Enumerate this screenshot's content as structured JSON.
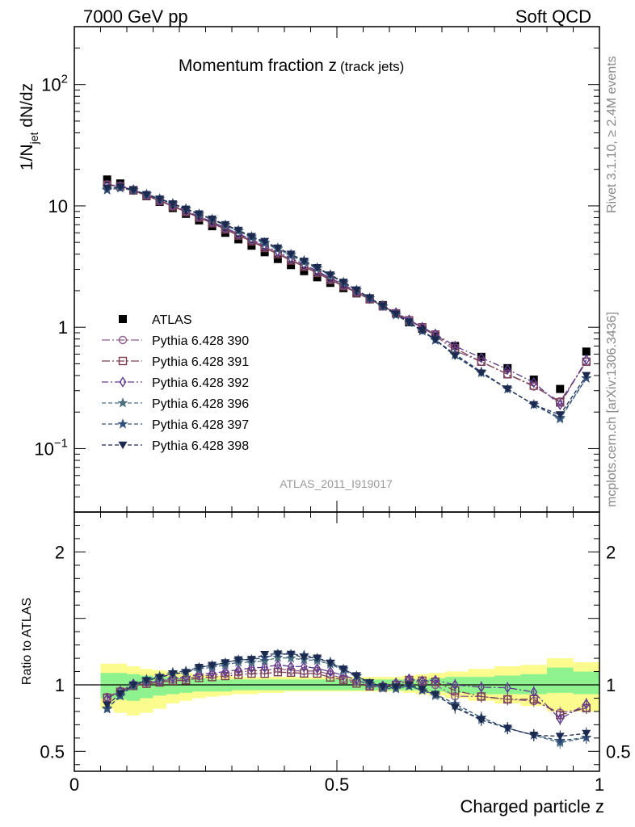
{
  "header": {
    "energy_label": "7000 GeV pp",
    "category_label": "Soft QCD",
    "side_rivet": "Rivet 3.1.10, ≥ 2.4M events",
    "side_mcplots": "mcplots.cern.ch [arXiv:1306.3436]"
  },
  "chart_data": {
    "type": "scatter",
    "title_main": "Momentum fraction z",
    "title_sub": "(track jets)",
    "analysis_label": "ATLAS_2011_I919017",
    "xlabel": "Charged particle z",
    "ylabel_main": "1/N",
    "ylabel_sub": "jet",
    "ylabel_tail": " dN/dz",
    "ratio_ylabel": "Ratio to ATLAS",
    "xlim": [
      0,
      1
    ],
    "ylim_main": [
      0.03,
      300
    ],
    "ylog_main": true,
    "ylim_ratio": [
      0.35,
      2.3
    ],
    "x_ticks": [
      {
        "v": 0,
        "label": "0"
      },
      {
        "v": 0.5,
        "label": "0.5"
      },
      {
        "v": 1,
        "label": "1"
      }
    ],
    "y_ticks_main": [
      {
        "v": 0.1,
        "base": "10",
        "exp": "−1"
      },
      {
        "v": 1,
        "base": "1",
        "exp": ""
      },
      {
        "v": 10,
        "base": "10",
        "exp": ""
      },
      {
        "v": 100,
        "base": "10",
        "exp": "2"
      }
    ],
    "y_ticks_ratio": [
      {
        "v": 0.5,
        "label": "0.5"
      },
      {
        "v": 1,
        "label": "1"
      },
      {
        "v": 2,
        "label": "2"
      }
    ],
    "x": [
      0.0625,
      0.0875,
      0.1125,
      0.1375,
      0.1625,
      0.1875,
      0.2125,
      0.2375,
      0.2625,
      0.2875,
      0.3125,
      0.3375,
      0.3625,
      0.3875,
      0.4125,
      0.4375,
      0.4625,
      0.4875,
      0.5125,
      0.5375,
      0.5625,
      0.5875,
      0.6125,
      0.6375,
      0.6625,
      0.6875,
      0.725,
      0.775,
      0.825,
      0.875,
      0.925,
      0.975
    ],
    "band_outer": [
      [
        0.82,
        1.16
      ],
      [
        0.79,
        1.16
      ],
      [
        0.77,
        1.14
      ],
      [
        0.79,
        1.12
      ],
      [
        0.82,
        1.11
      ],
      [
        0.86,
        1.1
      ],
      [
        0.88,
        1.09
      ],
      [
        0.9,
        1.08
      ],
      [
        0.91,
        1.07
      ],
      [
        0.92,
        1.07
      ],
      [
        0.93,
        1.06
      ],
      [
        0.93,
        1.06
      ],
      [
        0.94,
        1.06
      ],
      [
        0.94,
        1.06
      ],
      [
        0.95,
        1.06
      ],
      [
        0.95,
        1.06
      ],
      [
        0.95,
        1.06
      ],
      [
        0.95,
        1.06
      ],
      [
        0.95,
        1.06
      ],
      [
        0.95,
        1.06
      ],
      [
        0.95,
        1.06
      ],
      [
        0.95,
        1.06
      ],
      [
        0.95,
        1.06
      ],
      [
        0.94,
        1.07
      ],
      [
        0.93,
        1.08
      ],
      [
        0.92,
        1.09
      ],
      [
        0.9,
        1.1
      ],
      [
        0.88,
        1.12
      ],
      [
        0.86,
        1.14
      ],
      [
        0.84,
        1.15
      ],
      [
        0.8,
        1.2
      ],
      [
        0.8,
        1.17
      ]
    ],
    "band_inner": [
      [
        0.9,
        1.09
      ],
      [
        0.89,
        1.09
      ],
      [
        0.88,
        1.08
      ],
      [
        0.9,
        1.07
      ],
      [
        0.92,
        1.06
      ],
      [
        0.93,
        1.06
      ],
      [
        0.94,
        1.05
      ],
      [
        0.95,
        1.05
      ],
      [
        0.95,
        1.04
      ],
      [
        0.95,
        1.04
      ],
      [
        0.96,
        1.04
      ],
      [
        0.96,
        1.04
      ],
      [
        0.96,
        1.04
      ],
      [
        0.96,
        1.04
      ],
      [
        0.96,
        1.04
      ],
      [
        0.96,
        1.04
      ],
      [
        0.96,
        1.04
      ],
      [
        0.96,
        1.04
      ],
      [
        0.96,
        1.04
      ],
      [
        0.96,
        1.04
      ],
      [
        0.96,
        1.04
      ],
      [
        0.96,
        1.04
      ],
      [
        0.96,
        1.04
      ],
      [
        0.96,
        1.04
      ],
      [
        0.96,
        1.04
      ],
      [
        0.95,
        1.05
      ],
      [
        0.94,
        1.06
      ],
      [
        0.93,
        1.06
      ],
      [
        0.93,
        1.07
      ],
      [
        0.93,
        1.08
      ],
      [
        0.94,
        1.13
      ],
      [
        0.93,
        1.1
      ]
    ],
    "data_series": {
      "name": "ATLAS",
      "color": "#000000",
      "values": [
        16.5,
        15.3,
        13.5,
        12.0,
        10.8,
        9.6,
        8.6,
        7.6,
        6.8,
        6.0,
        5.3,
        4.7,
        4.15,
        3.65,
        3.25,
        2.9,
        2.58,
        2.32,
        2.1,
        1.9,
        1.72,
        1.52,
        1.3,
        1.1,
        0.97,
        0.85,
        0.7,
        0.57,
        0.46,
        0.37,
        0.31,
        0.63
      ]
    },
    "series": [
      {
        "name": "Pythia 6.428 390",
        "color": "#8e5c8c",
        "dash": "10,3,2,3",
        "marker": "circle",
        "values": [
          15.0,
          14.6,
          13.5,
          12.2,
          11.1,
          10.0,
          9.0,
          8.1,
          7.3,
          6.5,
          5.8,
          5.2,
          4.6,
          4.1,
          3.6,
          3.2,
          2.85,
          2.5,
          2.2,
          1.95,
          1.7,
          1.5,
          1.3,
          1.13,
          0.99,
          0.85,
          0.64,
          0.52,
          0.41,
          0.325,
          0.245,
          0.52
        ]
      },
      {
        "name": "Pythia 6.428 391",
        "color": "#7a4050",
        "dash": "10,3,2,3",
        "marker": "square",
        "values": [
          14.9,
          14.5,
          13.4,
          12.1,
          11.0,
          9.9,
          8.9,
          8.0,
          7.2,
          6.4,
          5.7,
          5.1,
          4.5,
          4.0,
          3.55,
          3.15,
          2.8,
          2.45,
          2.18,
          1.92,
          1.7,
          1.49,
          1.3,
          1.14,
          1.0,
          0.87,
          0.67,
          0.52,
          0.41,
          0.33,
          0.24,
          0.52
        ]
      },
      {
        "name": "Pythia 6.428 392",
        "color": "#5d3a8e",
        "dash": "8,3,2,3",
        "marker": "diamond",
        "values": [
          14.8,
          14.6,
          13.6,
          12.3,
          11.1,
          10.1,
          9.1,
          8.2,
          7.4,
          6.6,
          5.9,
          5.3,
          4.7,
          4.2,
          3.7,
          3.3,
          2.9,
          2.55,
          2.25,
          1.97,
          1.72,
          1.51,
          1.32,
          1.15,
          1.0,
          0.88,
          0.7,
          0.56,
          0.45,
          0.35,
          0.23,
          0.54
        ]
      },
      {
        "name": "Pythia 6.428 396",
        "color": "#4a7080",
        "dash": "5,3",
        "marker": "star",
        "values": [
          13.6,
          14.0,
          13.4,
          12.4,
          11.4,
          10.4,
          9.4,
          8.5,
          7.7,
          6.9,
          6.2,
          5.5,
          4.9,
          4.4,
          3.9,
          3.45,
          3.05,
          2.68,
          2.33,
          2.02,
          1.73,
          1.48,
          1.26,
          1.09,
          0.93,
          0.78,
          0.59,
          0.42,
          0.31,
          0.23,
          0.175,
          0.38
        ]
      },
      {
        "name": "Pythia 6.428 397",
        "color": "#34507a",
        "dash": "5,3",
        "marker": "star",
        "values": [
          13.5,
          14.1,
          13.5,
          12.5,
          11.5,
          10.5,
          9.5,
          8.6,
          7.8,
          7.0,
          6.3,
          5.6,
          5.0,
          4.5,
          4.0,
          3.55,
          3.1,
          2.72,
          2.35,
          2.03,
          1.74,
          1.49,
          1.27,
          1.09,
          0.93,
          0.79,
          0.6,
          0.43,
          0.31,
          0.23,
          0.18,
          0.38
        ]
      },
      {
        "name": "Pythia 6.428 398",
        "color": "#1c2a50",
        "dash": "5,3",
        "marker": "triangle-down",
        "values": [
          14.0,
          14.3,
          13.5,
          12.4,
          11.4,
          10.4,
          9.4,
          8.6,
          7.8,
          7.0,
          6.3,
          5.6,
          5.1,
          4.5,
          4.0,
          3.5,
          3.1,
          2.7,
          2.35,
          2.03,
          1.75,
          1.5,
          1.28,
          1.1,
          0.94,
          0.79,
          0.58,
          0.42,
          0.31,
          0.23,
          0.19,
          0.4
        ]
      }
    ]
  }
}
